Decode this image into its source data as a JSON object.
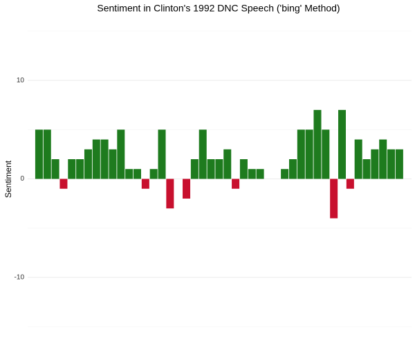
{
  "chart_data": {
    "type": "bar",
    "title": "Sentiment in Clinton's 1992 DNC Speech ('bing' Method)",
    "y_label": "Sentiment",
    "values": [
      5,
      5,
      2,
      -1,
      2,
      2,
      3,
      4,
      4,
      3,
      5,
      1,
      1,
      -1,
      1,
      5,
      -3,
      0,
      -2,
      2,
      5,
      2,
      2,
      3,
      -1,
      2,
      1,
      1,
      0,
      0,
      1,
      2,
      5,
      5,
      7,
      5,
      -4,
      7,
      -1,
      4,
      2,
      3,
      4,
      3,
      3
    ],
    "color_positive": "#1e7b1e",
    "color_negative": "#c8102e",
    "ylim": [
      -15,
      15
    ],
    "yticks": [
      -10,
      0,
      10
    ],
    "minor_yticks": [
      -15,
      -5,
      5,
      15
    ],
    "grid": true
  }
}
